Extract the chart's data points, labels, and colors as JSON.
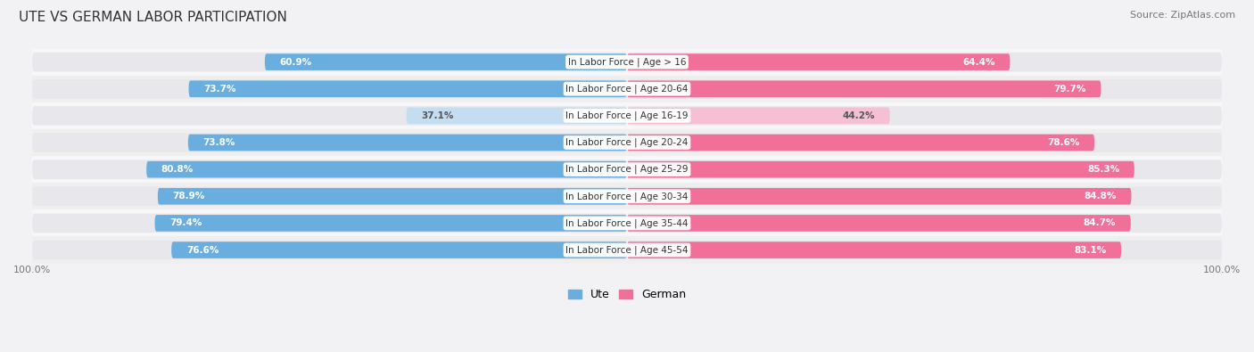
{
  "title": "UTE VS GERMAN LABOR PARTICIPATION",
  "source": "Source: ZipAtlas.com",
  "categories": [
    "In Labor Force | Age > 16",
    "In Labor Force | Age 20-64",
    "In Labor Force | Age 16-19",
    "In Labor Force | Age 20-24",
    "In Labor Force | Age 25-29",
    "In Labor Force | Age 30-34",
    "In Labor Force | Age 35-44",
    "In Labor Force | Age 45-54"
  ],
  "ute_values": [
    60.9,
    73.7,
    37.1,
    73.8,
    80.8,
    78.9,
    79.4,
    76.6
  ],
  "german_values": [
    64.4,
    79.7,
    44.2,
    78.6,
    85.3,
    84.8,
    84.7,
    83.1
  ],
  "ute_color_normal": "#6aaee0",
  "ute_color_light": "#c5ddf0",
  "german_color_normal": "#f07099",
  "german_color_light": "#f5c0d4",
  "track_color": "#e8e8ec",
  "row_bg_colors": [
    "#f7f7f9",
    "#efefef"
  ],
  "label_font_size": 7.5,
  "value_font_size": 7.5,
  "title_font_size": 11,
  "source_font_size": 8,
  "axis_font_size": 8,
  "light_rows": [
    2
  ]
}
